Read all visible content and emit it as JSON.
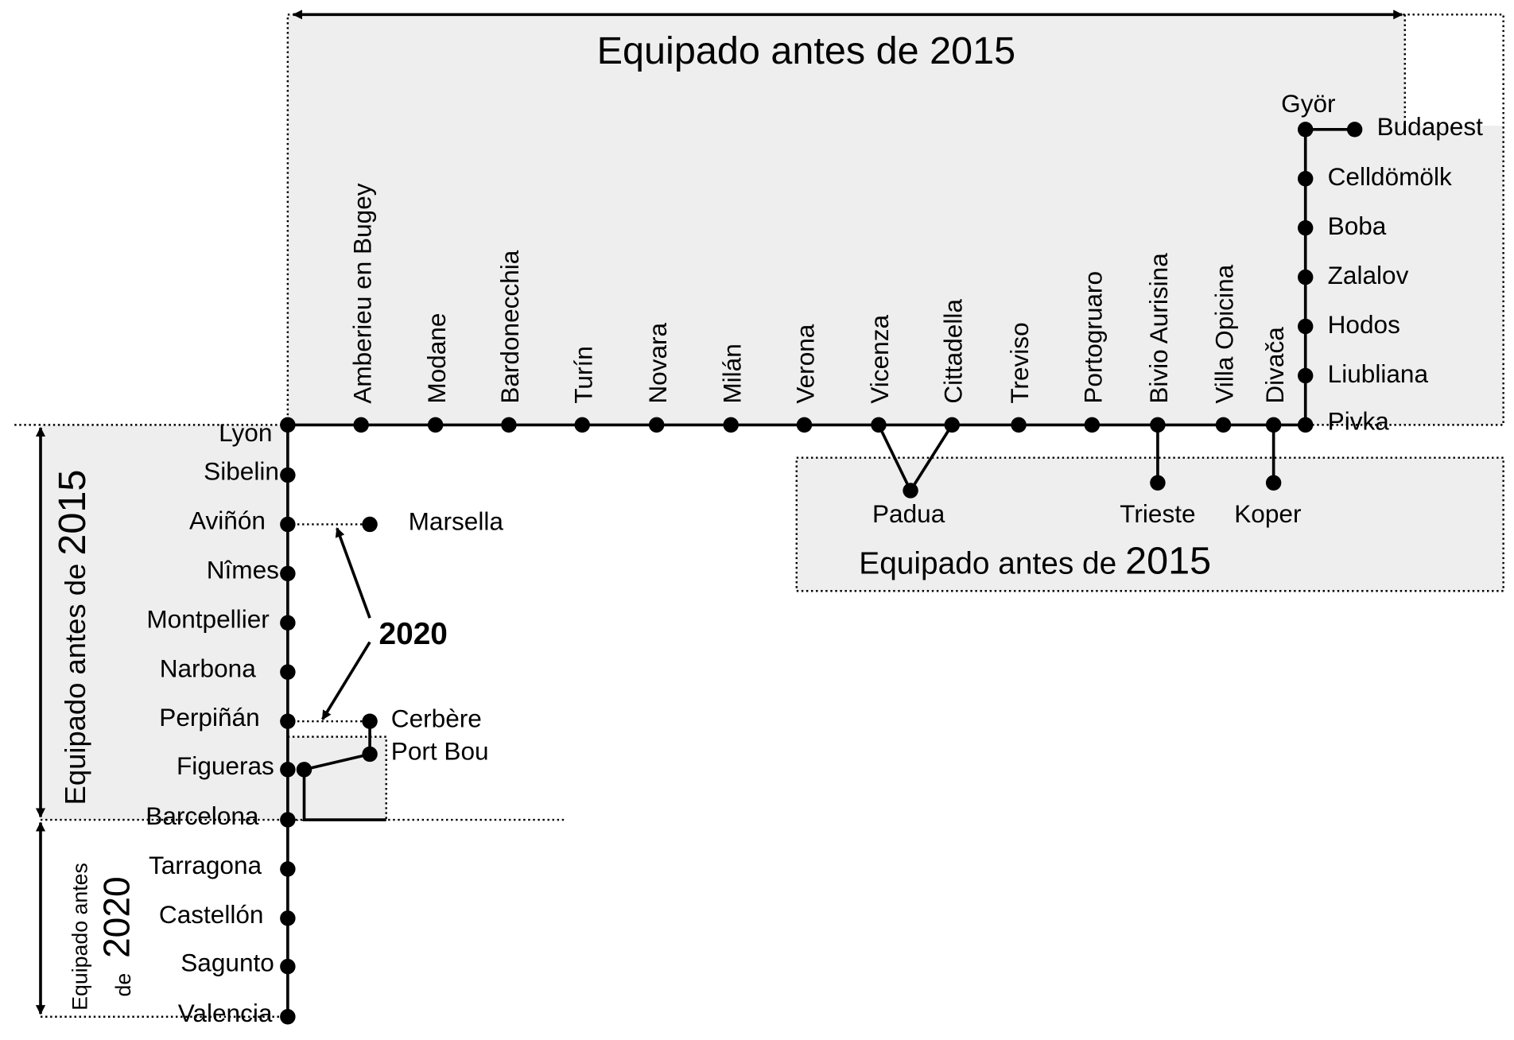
{
  "regions": [
    {
      "text": "Equipado antes de 2015"
    },
    {
      "text": "Equipado antes de",
      "year": "2015"
    },
    {
      "text": "Equipado antes de",
      "year": "2015"
    },
    {
      "text": "Equipado antes",
      "text2": "de",
      "year": "2020"
    }
  ],
  "annotation": "2020",
  "stations": [
    "Lyon",
    "Amberieu en Bugey",
    "Modane",
    "Bardonecchia",
    "Turín",
    "Novara",
    "Milán",
    "Verona",
    "Vicenza",
    "Cittadella",
    "Treviso",
    "Portogruaro",
    "Bivio Aurisina",
    "Villa Opicina",
    "Divača",
    "Pivka",
    "Liubliana",
    "Hodos",
    "Zalalov",
    "Boba",
    "Celldömölk",
    "Györ",
    "Budapest",
    "Padua",
    "Trieste",
    "Koper",
    "Sibelin",
    "Aviñón",
    "Nîmes",
    "Montpellier",
    "Narbona",
    "Perpiñán",
    "Figueras",
    "Barcelona",
    "Tarragona",
    "Castellón",
    "Sagunto",
    "Valencia",
    "Marsella",
    "Cerbère",
    "Port Bou"
  ]
}
